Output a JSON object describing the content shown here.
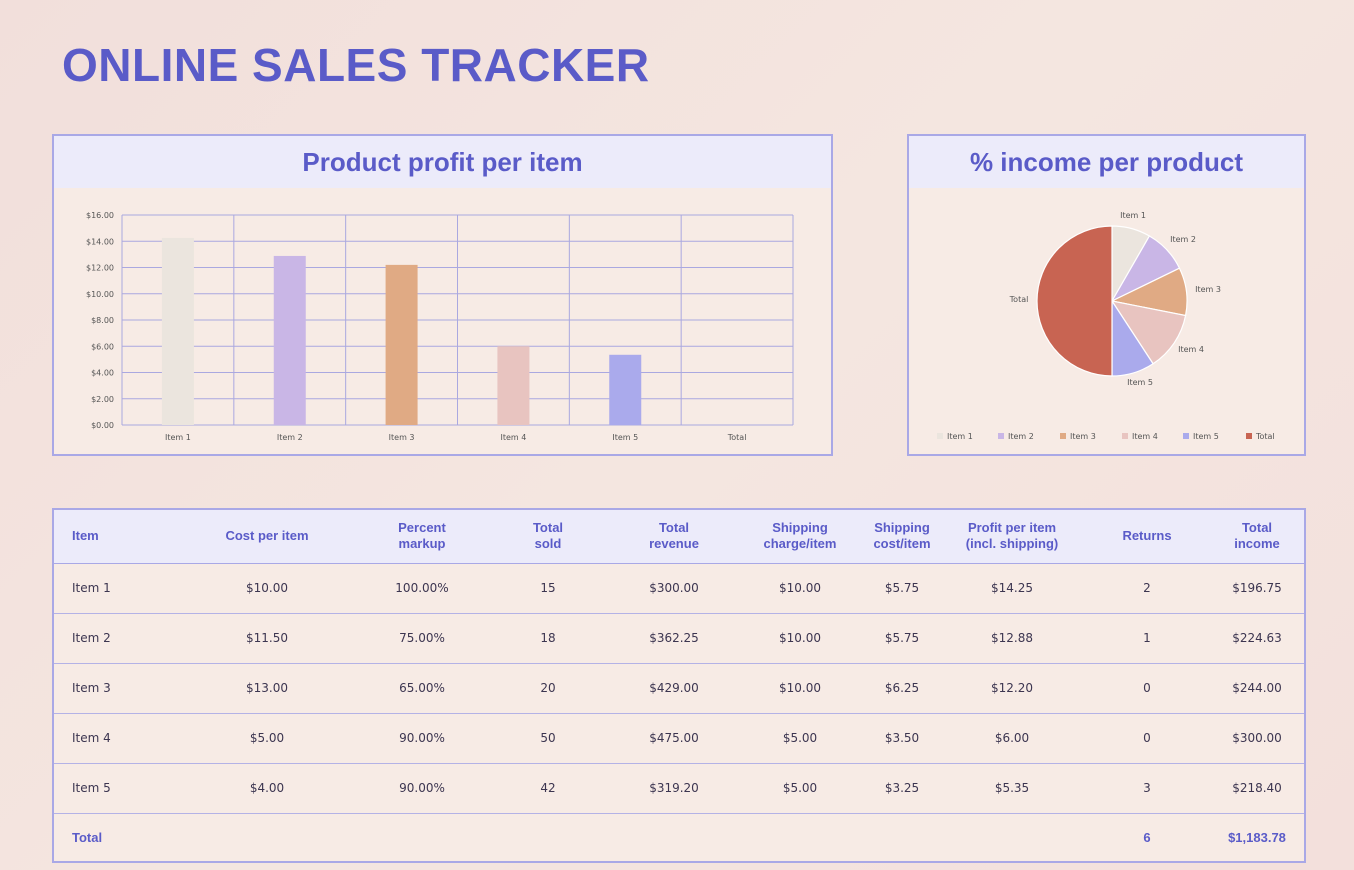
{
  "page": {
    "title": "ONLINE SALES TRACKER"
  },
  "bar_panel": {
    "title": "Product profit per item"
  },
  "pie_panel": {
    "title": "% income per product"
  },
  "colors": {
    "accent": "#5a5bc8",
    "item1": "#ebe5de",
    "item2": "#c9b6e6",
    "item3": "#e0aa84",
    "item4": "#e8c4c0",
    "item5": "#aaaaec",
    "total": "#c86452"
  },
  "chart_data": [
    {
      "type": "bar",
      "title": "",
      "categories": [
        "Item 1",
        "Item 2",
        "Item 3",
        "Item 4",
        "Item 5",
        "Total"
      ],
      "values": [
        14.25,
        12.88,
        12.2,
        6.0,
        5.35,
        null
      ],
      "ylim": [
        0,
        16
      ],
      "yticks": [
        "$0.00",
        "$2.00",
        "$4.00",
        "$6.00",
        "$8.00",
        "$10.00",
        "$12.00",
        "$14.00",
        "$16.00"
      ],
      "grid": true
    },
    {
      "type": "pie",
      "title": "",
      "labels": [
        "Item 1",
        "Item 2",
        "Item 3",
        "Item 4",
        "Item 5",
        "Total"
      ],
      "values": [
        196.75,
        224.63,
        244.0,
        300.0,
        218.4,
        1183.78
      ],
      "legend": "bottom"
    }
  ],
  "table": {
    "headers": [
      "Item",
      "Cost per item",
      "Percent\nmarkup",
      "Total\nsold",
      "Total\nrevenue",
      "Shipping\ncharge/item",
      "Shipping\ncost/item",
      "Profit per item\n(incl. shipping)",
      "Returns",
      "Total\nincome"
    ],
    "rows": [
      [
        "Item 1",
        "$10.00",
        "100.00%",
        "15",
        "$300.00",
        "$10.00",
        "$5.75",
        "$14.25",
        "2",
        "$196.75"
      ],
      [
        "Item 2",
        "$11.50",
        "75.00%",
        "18",
        "$362.25",
        "$10.00",
        "$5.75",
        "$12.88",
        "1",
        "$224.63"
      ],
      [
        "Item 3",
        "$13.00",
        "65.00%",
        "20",
        "$429.00",
        "$10.00",
        "$6.25",
        "$12.20",
        "0",
        "$244.00"
      ],
      [
        "Item 4",
        "$5.00",
        "90.00%",
        "50",
        "$475.00",
        "$5.00",
        "$3.50",
        "$6.00",
        "0",
        "$300.00"
      ],
      [
        "Item 5",
        "$4.00",
        "90.00%",
        "42",
        "$319.20",
        "$5.00",
        "$3.25",
        "$5.35",
        "3",
        "$218.40"
      ]
    ],
    "footer": [
      "Total",
      "",
      "",
      "",
      "",
      "",
      "",
      "",
      "6",
      "$1,183.78"
    ]
  }
}
